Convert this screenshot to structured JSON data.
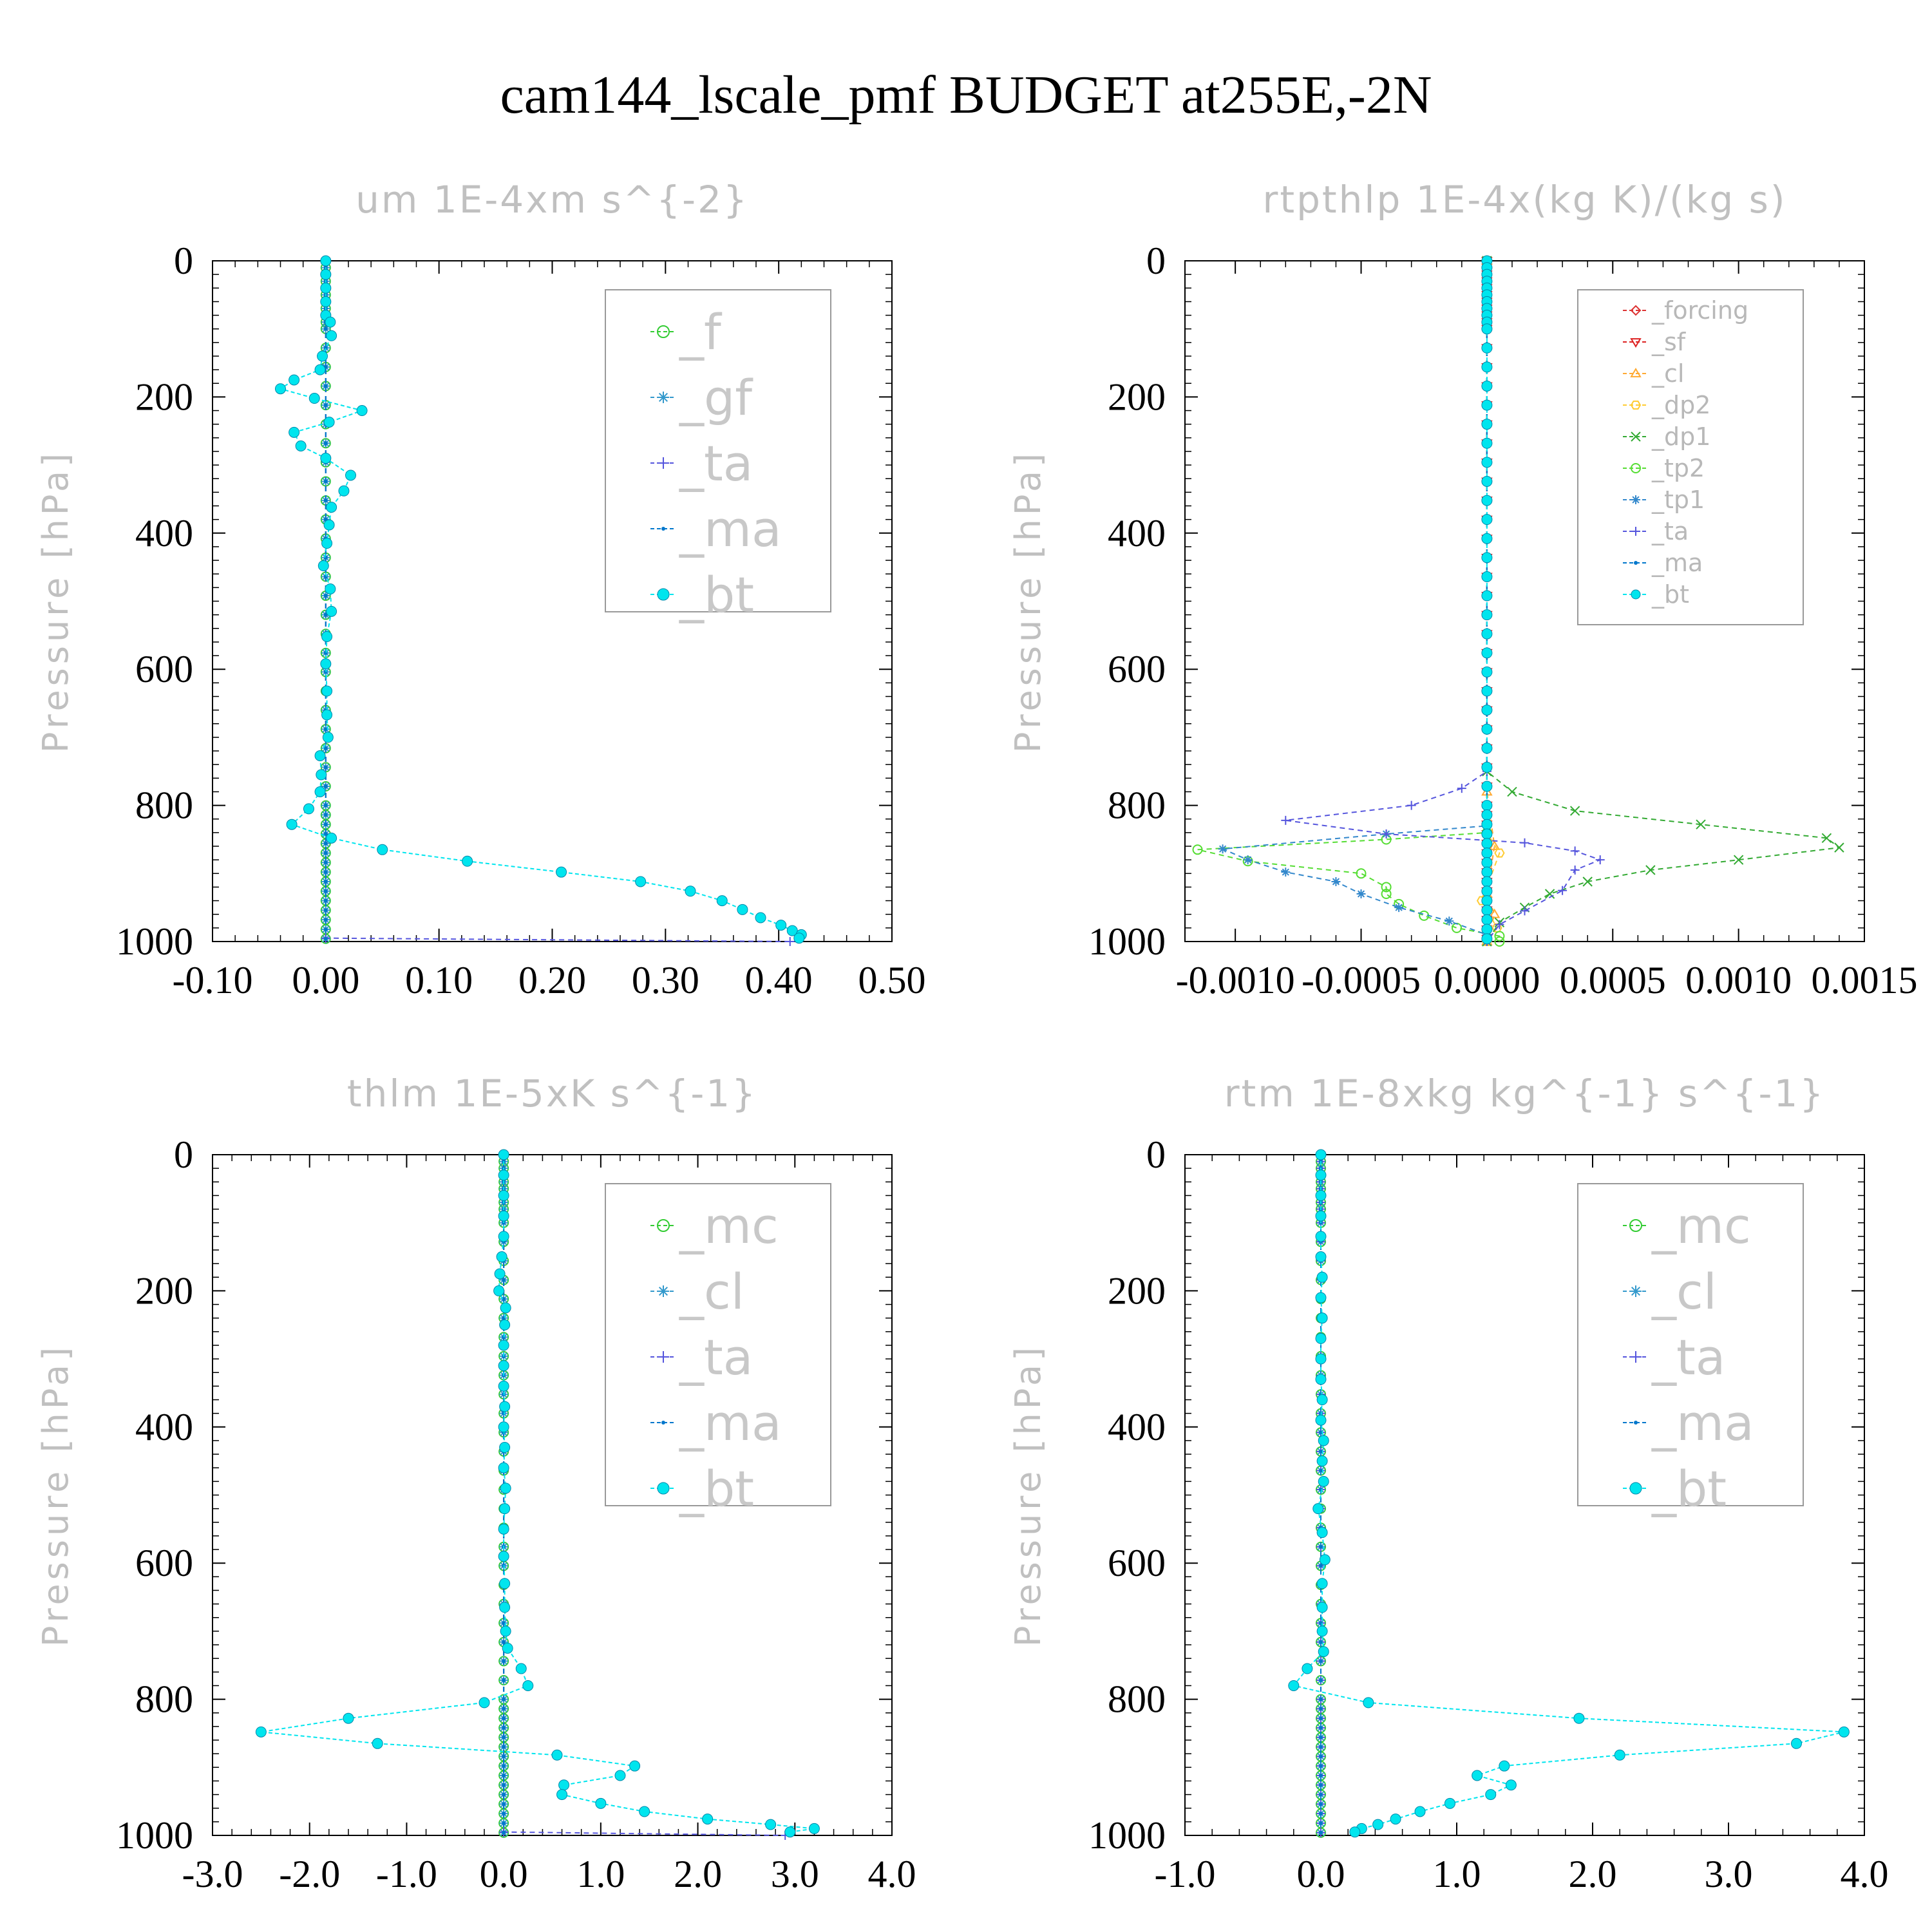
{
  "figure_title": "cam144_lscale_pmf  BUDGET at255E,-2N",
  "colors": {
    "f": "#33cc33",
    "gf": "#3399cc",
    "ta": "#5555dd",
    "ma": "#0077cc",
    "bt": "#00e5ee",
    "mc": "#33cc33",
    "cl": "#3399cc",
    "forcing": "#dd3333",
    "sf": "#dd2222",
    "cl_small": "#ffaa33",
    "dp2": "#ffcc33",
    "dp1": "#33aa33",
    "tp2": "#55dd33",
    "tp1": "#3388cc"
  },
  "chart_data": [
    {
      "type": "line",
      "panel": "top-left",
      "title": "um  1E-4xm s^{-2}",
      "ylabel": "Pressure [hPa]",
      "xlim": [
        -0.1,
        0.5
      ],
      "ylim": [
        1000,
        0
      ],
      "xticks": [
        "-0.10",
        "0.00",
        "0.10",
        "0.20",
        "0.30",
        "0.40",
        "0.50"
      ],
      "xtick_values": [
        -0.1,
        0.0,
        0.1,
        0.2,
        0.3,
        0.4,
        0.5
      ],
      "yticks": [
        "0",
        "200",
        "400",
        "600",
        "800",
        "1000"
      ],
      "legend_position": "top-right",
      "legend_size": "big",
      "series": [
        {
          "name": "_f",
          "key": "f",
          "marker": "circle-open"
        },
        {
          "name": "_gf",
          "key": "gf",
          "marker": "asterisk"
        },
        {
          "name": "_ta",
          "key": "ta",
          "marker": "plus",
          "points": [
            [
              0,
              0
            ],
            [
              0,
              995
            ],
            [
              0.41,
              1000
            ]
          ]
        },
        {
          "name": "_ma",
          "key": "ma",
          "marker": "dot"
        },
        {
          "name": "_bt",
          "key": "bt",
          "marker": "filled-circle",
          "points": [
            [
              0,
              0
            ],
            [
              0,
              20
            ],
            [
              0,
              40
            ],
            [
              0,
              60
            ],
            [
              0,
              80
            ],
            [
              0.004,
              90
            ],
            [
              0.005,
              110
            ],
            [
              -0.003,
              140
            ],
            [
              -0.005,
              160
            ],
            [
              -0.028,
              175
            ],
            [
              -0.04,
              188
            ],
            [
              -0.01,
              202
            ],
            [
              0.032,
              220
            ],
            [
              0.003,
              237
            ],
            [
              -0.028,
              252
            ],
            [
              -0.022,
              272
            ],
            [
              0,
              290
            ],
            [
              0.022,
              315
            ],
            [
              0.016,
              338
            ],
            [
              0.005,
              362
            ],
            [
              0.003,
              388
            ],
            [
              0.001,
              415
            ],
            [
              -0.002,
              448
            ],
            [
              0.004,
              482
            ],
            [
              0.005,
              515
            ],
            [
              0.001,
              552
            ],
            [
              0,
              592
            ],
            [
              0.001,
              632
            ],
            [
              0.001,
              667
            ],
            [
              0.002,
              700
            ],
            [
              -0.005,
              727
            ],
            [
              -0.004,
              755
            ],
            [
              -0.005,
              780
            ],
            [
              -0.015,
              805
            ],
            [
              -0.03,
              828
            ],
            [
              0.005,
              848
            ],
            [
              0.05,
              865
            ],
            [
              0.125,
              882
            ],
            [
              0.208,
              898
            ],
            [
              0.278,
              912
            ],
            [
              0.322,
              926
            ],
            [
              0.35,
              940
            ],
            [
              0.368,
              953
            ],
            [
              0.384,
              965
            ],
            [
              0.402,
              976
            ],
            [
              0.412,
              984
            ],
            [
              0.42,
              990
            ],
            [
              0.418,
              995
            ]
          ]
        }
      ]
    },
    {
      "type": "line",
      "panel": "top-right",
      "title": "rtpthlp  1E-4x(kg K)/(kg s)",
      "ylabel": "Pressure [hPa]",
      "xlim": [
        -0.0012,
        0.0015
      ],
      "ylim": [
        1000,
        0
      ],
      "xticks": [
        "-0.0010",
        "-0.0005",
        "0.0000",
        "0.0005",
        "0.0010",
        "0.0015"
      ],
      "xtick_values": [
        -0.001,
        -0.0005,
        0.0,
        0.0005,
        0.001,
        0.0015
      ],
      "yticks": [
        "0",
        "200",
        "400",
        "600",
        "800",
        "1000"
      ],
      "legend_position": "top-right",
      "legend_size": "small",
      "series": [
        {
          "name": "_forcing",
          "key": "forcing",
          "marker": "diamond"
        },
        {
          "name": "_sf",
          "key": "sf",
          "marker": "triangle-down"
        },
        {
          "name": "_cl",
          "key": "cl_small",
          "marker": "triangle-up",
          "points": [
            [
              0,
              0
            ],
            [
              0,
              780
            ],
            [
              3e-05,
              860
            ],
            [
              0,
              930
            ],
            [
              3e-05,
              960
            ],
            [
              0,
              1000
            ]
          ]
        },
        {
          "name": "_dp2",
          "key": "dp2",
          "marker": "hexagon",
          "points": [
            [
              0,
              0
            ],
            [
              0,
              840
            ],
            [
              5e-05,
              870
            ],
            [
              -2e-05,
              940
            ],
            [
              4e-05,
              980
            ],
            [
              0,
              1000
            ]
          ]
        },
        {
          "name": "_dp1",
          "key": "dp1",
          "marker": "x",
          "points": [
            [
              0,
              0
            ],
            [
              0,
              750
            ],
            [
              0.0001,
              780
            ],
            [
              0.00035,
              808
            ],
            [
              0.00085,
              828
            ],
            [
              0.00135,
              848
            ],
            [
              0.0014,
              862
            ],
            [
              0.001,
              880
            ],
            [
              0.00065,
              895
            ],
            [
              0.0004,
              912
            ],
            [
              0.00025,
              930
            ],
            [
              0.00015,
              950
            ],
            [
              5e-05,
              972
            ],
            [
              0,
              1000
            ]
          ]
        },
        {
          "name": "_tp2",
          "key": "tp2",
          "marker": "circle-open",
          "points": [
            [
              0,
              0
            ],
            [
              0,
              840
            ],
            [
              -0.0004,
              850
            ],
            [
              -0.00115,
              865
            ],
            [
              -0.00095,
              882
            ],
            [
              -0.0005,
              900
            ],
            [
              -0.0004,
              920
            ],
            [
              -0.0004,
              930
            ],
            [
              -0.00035,
              945
            ],
            [
              -0.00025,
              962
            ],
            [
              -0.00012,
              980
            ],
            [
              5e-05,
              992
            ],
            [
              5e-05,
              1000
            ]
          ]
        },
        {
          "name": "_tp1",
          "key": "tp1",
          "marker": "asterisk",
          "points": [
            [
              0,
              0
            ],
            [
              0,
              830
            ],
            [
              -0.0004,
              842
            ],
            [
              -0.00105,
              864
            ],
            [
              -0.00095,
              880
            ],
            [
              -0.0008,
              898
            ],
            [
              -0.0006,
              912
            ],
            [
              -0.0005,
              930
            ],
            [
              -0.00035,
              950
            ],
            [
              -0.00015,
              970
            ],
            [
              0,
              990
            ],
            [
              0,
              1000
            ]
          ]
        },
        {
          "name": "_ta",
          "key": "ta",
          "marker": "plus",
          "points": [
            [
              0,
              0
            ],
            [
              0,
              750
            ],
            [
              -0.0001,
              775
            ],
            [
              -0.0003,
              800
            ],
            [
              -0.0008,
              822
            ],
            [
              -0.0004,
              842
            ],
            [
              0.00015,
              855
            ],
            [
              0.00035,
              867
            ],
            [
              0.00045,
              880
            ],
            [
              0.00035,
              895
            ],
            [
              0.0003,
              925
            ],
            [
              0.00015,
              955
            ],
            [
              5e-05,
              975
            ],
            [
              0,
              1000
            ]
          ]
        },
        {
          "name": "_ma",
          "key": "ma",
          "marker": "dot"
        },
        {
          "name": "_bt",
          "key": "bt",
          "marker": "filled-circle",
          "points": "zero"
        }
      ]
    },
    {
      "type": "line",
      "panel": "bottom-left",
      "title": "thlm  1E-5xK s^{-1}",
      "ylabel": "Pressure [hPa]",
      "xlim": [
        -3.0,
        4.0
      ],
      "ylim": [
        1000,
        0
      ],
      "xticks": [
        "-3.0",
        "-2.0",
        "-1.0",
        "0.0",
        "1.0",
        "2.0",
        "3.0",
        "4.0"
      ],
      "xtick_values": [
        -3.0,
        -2.0,
        -1.0,
        0.0,
        1.0,
        2.0,
        3.0,
        4.0
      ],
      "yticks": [
        "0",
        "200",
        "400",
        "600",
        "800",
        "1000"
      ],
      "legend_position": "top-right",
      "legend_size": "big",
      "series": [
        {
          "name": "_mc",
          "key": "mc",
          "marker": "circle-open"
        },
        {
          "name": "_cl",
          "key": "cl",
          "marker": "asterisk"
        },
        {
          "name": "_ta",
          "key": "ta",
          "marker": "plus",
          "points": [
            [
              0,
              0
            ],
            [
              0,
              995
            ],
            [
              2.9,
              1000
            ]
          ]
        },
        {
          "name": "_ma",
          "key": "ma",
          "marker": "dot"
        },
        {
          "name": "_bt",
          "key": "bt",
          "marker": "filled-circle",
          "points": [
            [
              0,
              0
            ],
            [
              0,
              30
            ],
            [
              0,
              60
            ],
            [
              0,
              90
            ],
            [
              0,
              120
            ],
            [
              -0.02,
              150
            ],
            [
              -0.04,
              175
            ],
            [
              -0.05,
              200
            ],
            [
              0.02,
              225
            ],
            [
              0.01,
              250
            ],
            [
              0,
              280
            ],
            [
              0,
              310
            ],
            [
              0,
              340
            ],
            [
              0.01,
              370
            ],
            [
              0,
              400
            ],
            [
              0.01,
              430
            ],
            [
              0,
              460
            ],
            [
              0.02,
              490
            ],
            [
              0.01,
              520
            ],
            [
              0,
              550
            ],
            [
              0,
              590
            ],
            [
              0.01,
              630
            ],
            [
              0.01,
              665
            ],
            [
              0.02,
              700
            ],
            [
              0.04,
              725
            ],
            [
              0.18,
              755
            ],
            [
              0.25,
              780
            ],
            [
              -0.2,
              805
            ],
            [
              -1.6,
              828
            ],
            [
              -2.5,
              848
            ],
            [
              -1.3,
              865
            ],
            [
              0.55,
              882
            ],
            [
              1.35,
              898
            ],
            [
              1.2,
              912
            ],
            [
              0.62,
              926
            ],
            [
              0.6,
              940
            ],
            [
              1.0,
              953
            ],
            [
              1.45,
              965
            ],
            [
              2.1,
              976
            ],
            [
              2.75,
              984
            ],
            [
              3.2,
              990
            ],
            [
              2.95,
              995
            ]
          ]
        }
      ]
    },
    {
      "type": "line",
      "panel": "bottom-right",
      "title": "rtm  1E-8xkg kg^{-1} s^{-1}",
      "ylabel": "Pressure [hPa]",
      "xlim": [
        -1.0,
        4.0
      ],
      "ylim": [
        1000,
        0
      ],
      "xticks": [
        "-1.0",
        "0.0",
        "1.0",
        "2.0",
        "3.0",
        "4.0"
      ],
      "xtick_values": [
        -1.0,
        0.0,
        1.0,
        2.0,
        3.0,
        4.0
      ],
      "yticks": [
        "0",
        "200",
        "400",
        "600",
        "800",
        "1000"
      ],
      "legend_position": "top-right",
      "legend_size": "big",
      "series": [
        {
          "name": "_mc",
          "key": "mc",
          "marker": "circle-open"
        },
        {
          "name": "_cl",
          "key": "cl",
          "marker": "asterisk"
        },
        {
          "name": "_ta",
          "key": "ta",
          "marker": "plus"
        },
        {
          "name": "_ma",
          "key": "ma",
          "marker": "dot"
        },
        {
          "name": "_bt",
          "key": "bt",
          "marker": "filled-circle",
          "points": [
            [
              0,
              0
            ],
            [
              0,
              30
            ],
            [
              0,
              60
            ],
            [
              0,
              90
            ],
            [
              0,
              120
            ],
            [
              0,
              150
            ],
            [
              0.01,
              180
            ],
            [
              0,
              210
            ],
            [
              0.01,
              240
            ],
            [
              0,
              270
            ],
            [
              0,
              300
            ],
            [
              0,
              330
            ],
            [
              0.01,
              360
            ],
            [
              0,
              390
            ],
            [
              0.02,
              420
            ],
            [
              0.01,
              450
            ],
            [
              0.02,
              480
            ],
            [
              -0.02,
              520
            ],
            [
              0.01,
              555
            ],
            [
              0.03,
              595
            ],
            [
              0.01,
              630
            ],
            [
              0.01,
              665
            ],
            [
              0.01,
              700
            ],
            [
              0.02,
              730
            ],
            [
              -0.1,
              755
            ],
            [
              -0.2,
              780
            ],
            [
              0.35,
              805
            ],
            [
              1.9,
              828
            ],
            [
              3.85,
              848
            ],
            [
              3.5,
              865
            ],
            [
              2.2,
              882
            ],
            [
              1.35,
              898
            ],
            [
              1.15,
              912
            ],
            [
              1.4,
              926
            ],
            [
              1.25,
              940
            ],
            [
              0.95,
              953
            ],
            [
              0.73,
              965
            ],
            [
              0.55,
              976
            ],
            [
              0.42,
              984
            ],
            [
              0.3,
              990
            ],
            [
              0.25,
              995
            ]
          ]
        }
      ]
    }
  ]
}
